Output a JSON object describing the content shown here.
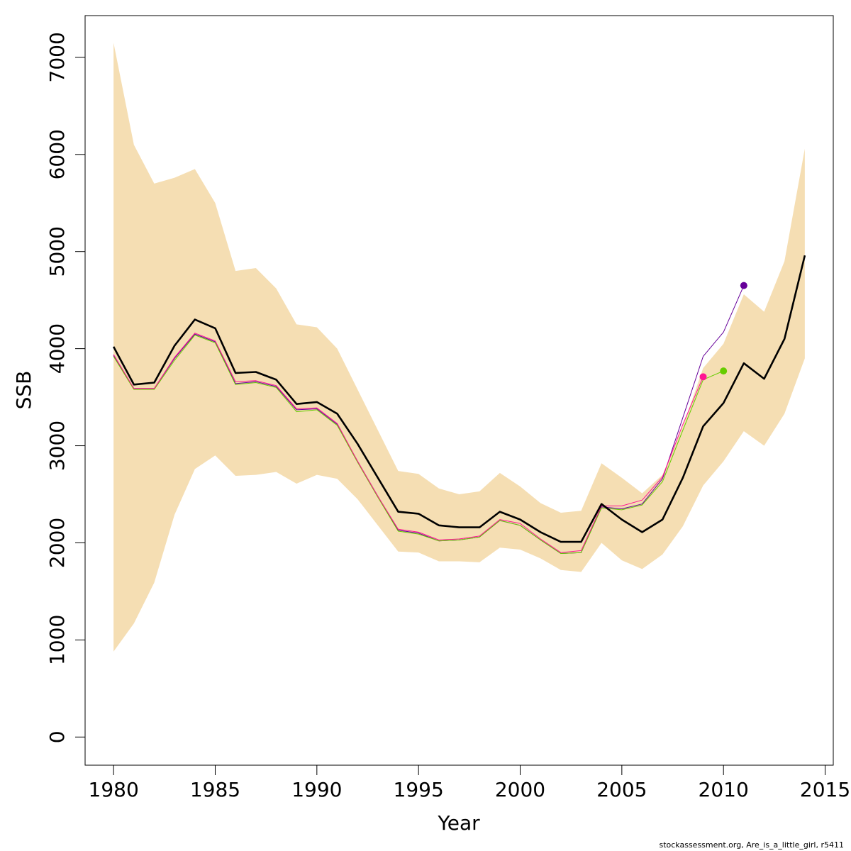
{
  "chart_data": {
    "type": "line",
    "title": "",
    "xlabel": "Year",
    "ylabel": "SSB",
    "xlim": [
      1978.6,
      2015.4
    ],
    "ylim": [
      -290,
      7430
    ],
    "xticks": [
      1980,
      1985,
      1990,
      1995,
      2000,
      2005,
      2010,
      2015
    ],
    "yticks": [
      0,
      1000,
      2000,
      3000,
      4000,
      5000,
      6000,
      7000
    ],
    "grid": false,
    "band": {
      "color": "#F5DEB3",
      "x": [
        1980,
        1981,
        1982,
        1983,
        1984,
        1985,
        1986,
        1987,
        1988,
        1989,
        1990,
        1991,
        1992,
        1993,
        1994,
        1995,
        1996,
        1997,
        1998,
        1999,
        2000,
        2001,
        2002,
        2003,
        2004,
        2005,
        2006,
        2007,
        2008,
        2009,
        2010,
        2011,
        2012,
        2013,
        2014
      ],
      "upper": [
        7150,
        6100,
        5700,
        5760,
        5850,
        5500,
        4800,
        4830,
        4620,
        4250,
        4220,
        4000,
        3580,
        3160,
        2740,
        2710,
        2560,
        2500,
        2530,
        2720,
        2580,
        2410,
        2310,
        2330,
        2820,
        2670,
        2510,
        2700,
        3200,
        3800,
        4050,
        4560,
        4380,
        4900,
        6060
      ],
      "lower": [
        880,
        1170,
        1590,
        2290,
        2760,
        2900,
        2690,
        2700,
        2730,
        2610,
        2700,
        2660,
        2450,
        2180,
        1910,
        1900,
        1810,
        1810,
        1800,
        1950,
        1930,
        1840,
        1720,
        1700,
        2000,
        1820,
        1730,
        1880,
        2170,
        2590,
        2840,
        3150,
        3000,
        3330,
        3900
      ]
    },
    "series": [
      {
        "color": "#000000",
        "x": [
          1980,
          1981,
          1982,
          1983,
          1984,
          1985,
          1986,
          1987,
          1988,
          1989,
          1990,
          1991,
          1992,
          1993,
          1994,
          1995,
          1996,
          1997,
          1998,
          1999,
          2000,
          2001,
          2002,
          2003,
          2004,
          2005,
          2006,
          2007,
          2008,
          2009,
          2010,
          2011,
          2012,
          2013,
          2014
        ],
        "y": [
          4020,
          3630,
          3650,
          4030,
          4300,
          4210,
          3750,
          3760,
          3680,
          3430,
          3450,
          3330,
          3020,
          2670,
          2320,
          2300,
          2180,
          2160,
          2160,
          2320,
          2240,
          2110,
          2010,
          2010,
          2400,
          2240,
          2110,
          2240,
          2670,
          3200,
          3440,
          3850,
          3690,
          4100,
          4960
        ]
      },
      {
        "color": "#FF1493",
        "x": [
          1980,
          1981,
          1982,
          1983,
          1984,
          1985,
          1986,
          1987,
          1988,
          1989,
          1990,
          1991,
          1992,
          1993,
          1994,
          1995,
          1996,
          1997,
          1998,
          1999,
          2000,
          2001,
          2002,
          2003,
          2004,
          2005,
          2006,
          2007,
          2008,
          2009
        ],
        "y": [
          3940,
          3590,
          3590,
          3910,
          4160,
          4080,
          3660,
          3670,
          3620,
          3380,
          3390,
          3230,
          2840,
          2480,
          2140,
          2110,
          2030,
          2040,
          2070,
          2240,
          2200,
          2040,
          1900,
          1920,
          2380,
          2380,
          2440,
          2680,
          3220,
          3710
        ],
        "end_marker": true
      },
      {
        "color": "#66CC00",
        "x": [
          1980,
          1981,
          1982,
          1983,
          1984,
          1985,
          1986,
          1987,
          1988,
          1989,
          1990,
          1991,
          1992,
          1993,
          1994,
          1995,
          1996,
          1997,
          1998,
          1999,
          2000,
          2001,
          2002,
          2003,
          2004,
          2005,
          2006,
          2007,
          2008,
          2009,
          2010
        ],
        "y": [
          3920,
          3580,
          3580,
          3880,
          4140,
          4060,
          3630,
          3650,
          3600,
          3350,
          3370,
          3210,
          2830,
          2470,
          2120,
          2090,
          2020,
          2030,
          2060,
          2230,
          2180,
          2030,
          1890,
          1900,
          2360,
          2340,
          2390,
          2630,
          3160,
          3680,
          3770
        ],
        "end_marker": true
      },
      {
        "color": "#660099",
        "x": [
          1980,
          1981,
          1982,
          1983,
          1984,
          1985,
          1986,
          1987,
          1988,
          1989,
          1990,
          1991,
          1992,
          1993,
          1994,
          1995,
          1996,
          1997,
          1998,
          1999,
          2000,
          2001,
          2002,
          2003,
          2004,
          2005,
          2006,
          2007,
          2008,
          2009,
          2010,
          2011
        ],
        "y": [
          3930,
          3590,
          3590,
          3900,
          4150,
          4070,
          3640,
          3660,
          3610,
          3370,
          3380,
          3220,
          2840,
          2480,
          2130,
          2100,
          2020,
          2030,
          2060,
          2230,
          2180,
          2030,
          1890,
          1900,
          2370,
          2350,
          2400,
          2660,
          3290,
          3920,
          4170,
          4650
        ],
        "end_marker": true
      }
    ],
    "footer": "stockassessment.org, Are_is_a_little_girl, r5411"
  }
}
